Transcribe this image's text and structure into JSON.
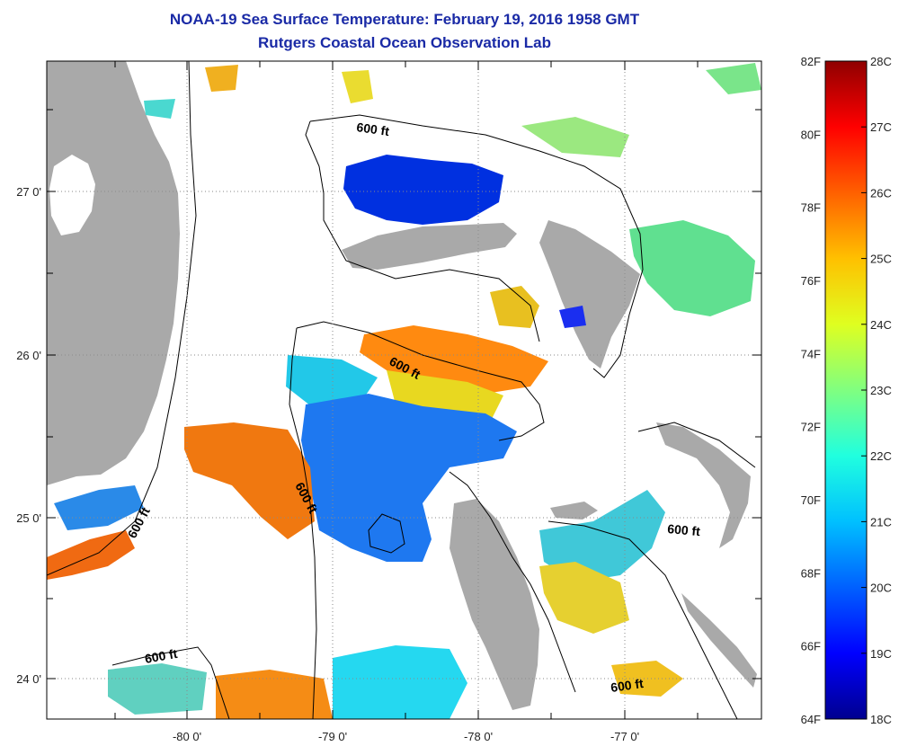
{
  "title": "NOAA-19 Sea Surface Temperature:  February 19, 2016 1958 GMT",
  "subtitle": "Rutgers Coastal Ocean Observation Lab",
  "axes": {
    "x_ticks": [
      "-80 0'",
      "-79 0'",
      "-78 0'",
      "-77 0'"
    ],
    "y_ticks": [
      "27 0'",
      "26 0'",
      "25 0'",
      "24 0'"
    ]
  },
  "colorbar": {
    "fahrenheit_labels": [
      "82F",
      "80F",
      "78F",
      "76F",
      "74F",
      "72F",
      "70F",
      "68F",
      "66F",
      "64F"
    ],
    "celsius_labels": [
      "28C",
      "27C",
      "26C",
      "25C",
      "24C",
      "23C",
      "22C",
      "21C",
      "20C",
      "19C",
      "18C"
    ],
    "colors": [
      "#00008f",
      "#0000ff",
      "#0060ff",
      "#00c0ff",
      "#20ffdf",
      "#80ff80",
      "#dfff20",
      "#ffc000",
      "#ff6000",
      "#ff0000",
      "#8f0000"
    ]
  },
  "contour_labels": [
    "600 ft",
    "600 ft",
    "600 ft",
    "600 ft",
    "600 ft",
    "600 ft"
  ],
  "colors": {
    "land": "#a9a9a9",
    "title": "#1a2aa6",
    "frame": "#000000",
    "grid": "#8a8a8a"
  },
  "icons": [
    "colorbar",
    "contour-line",
    "land-mass"
  ]
}
